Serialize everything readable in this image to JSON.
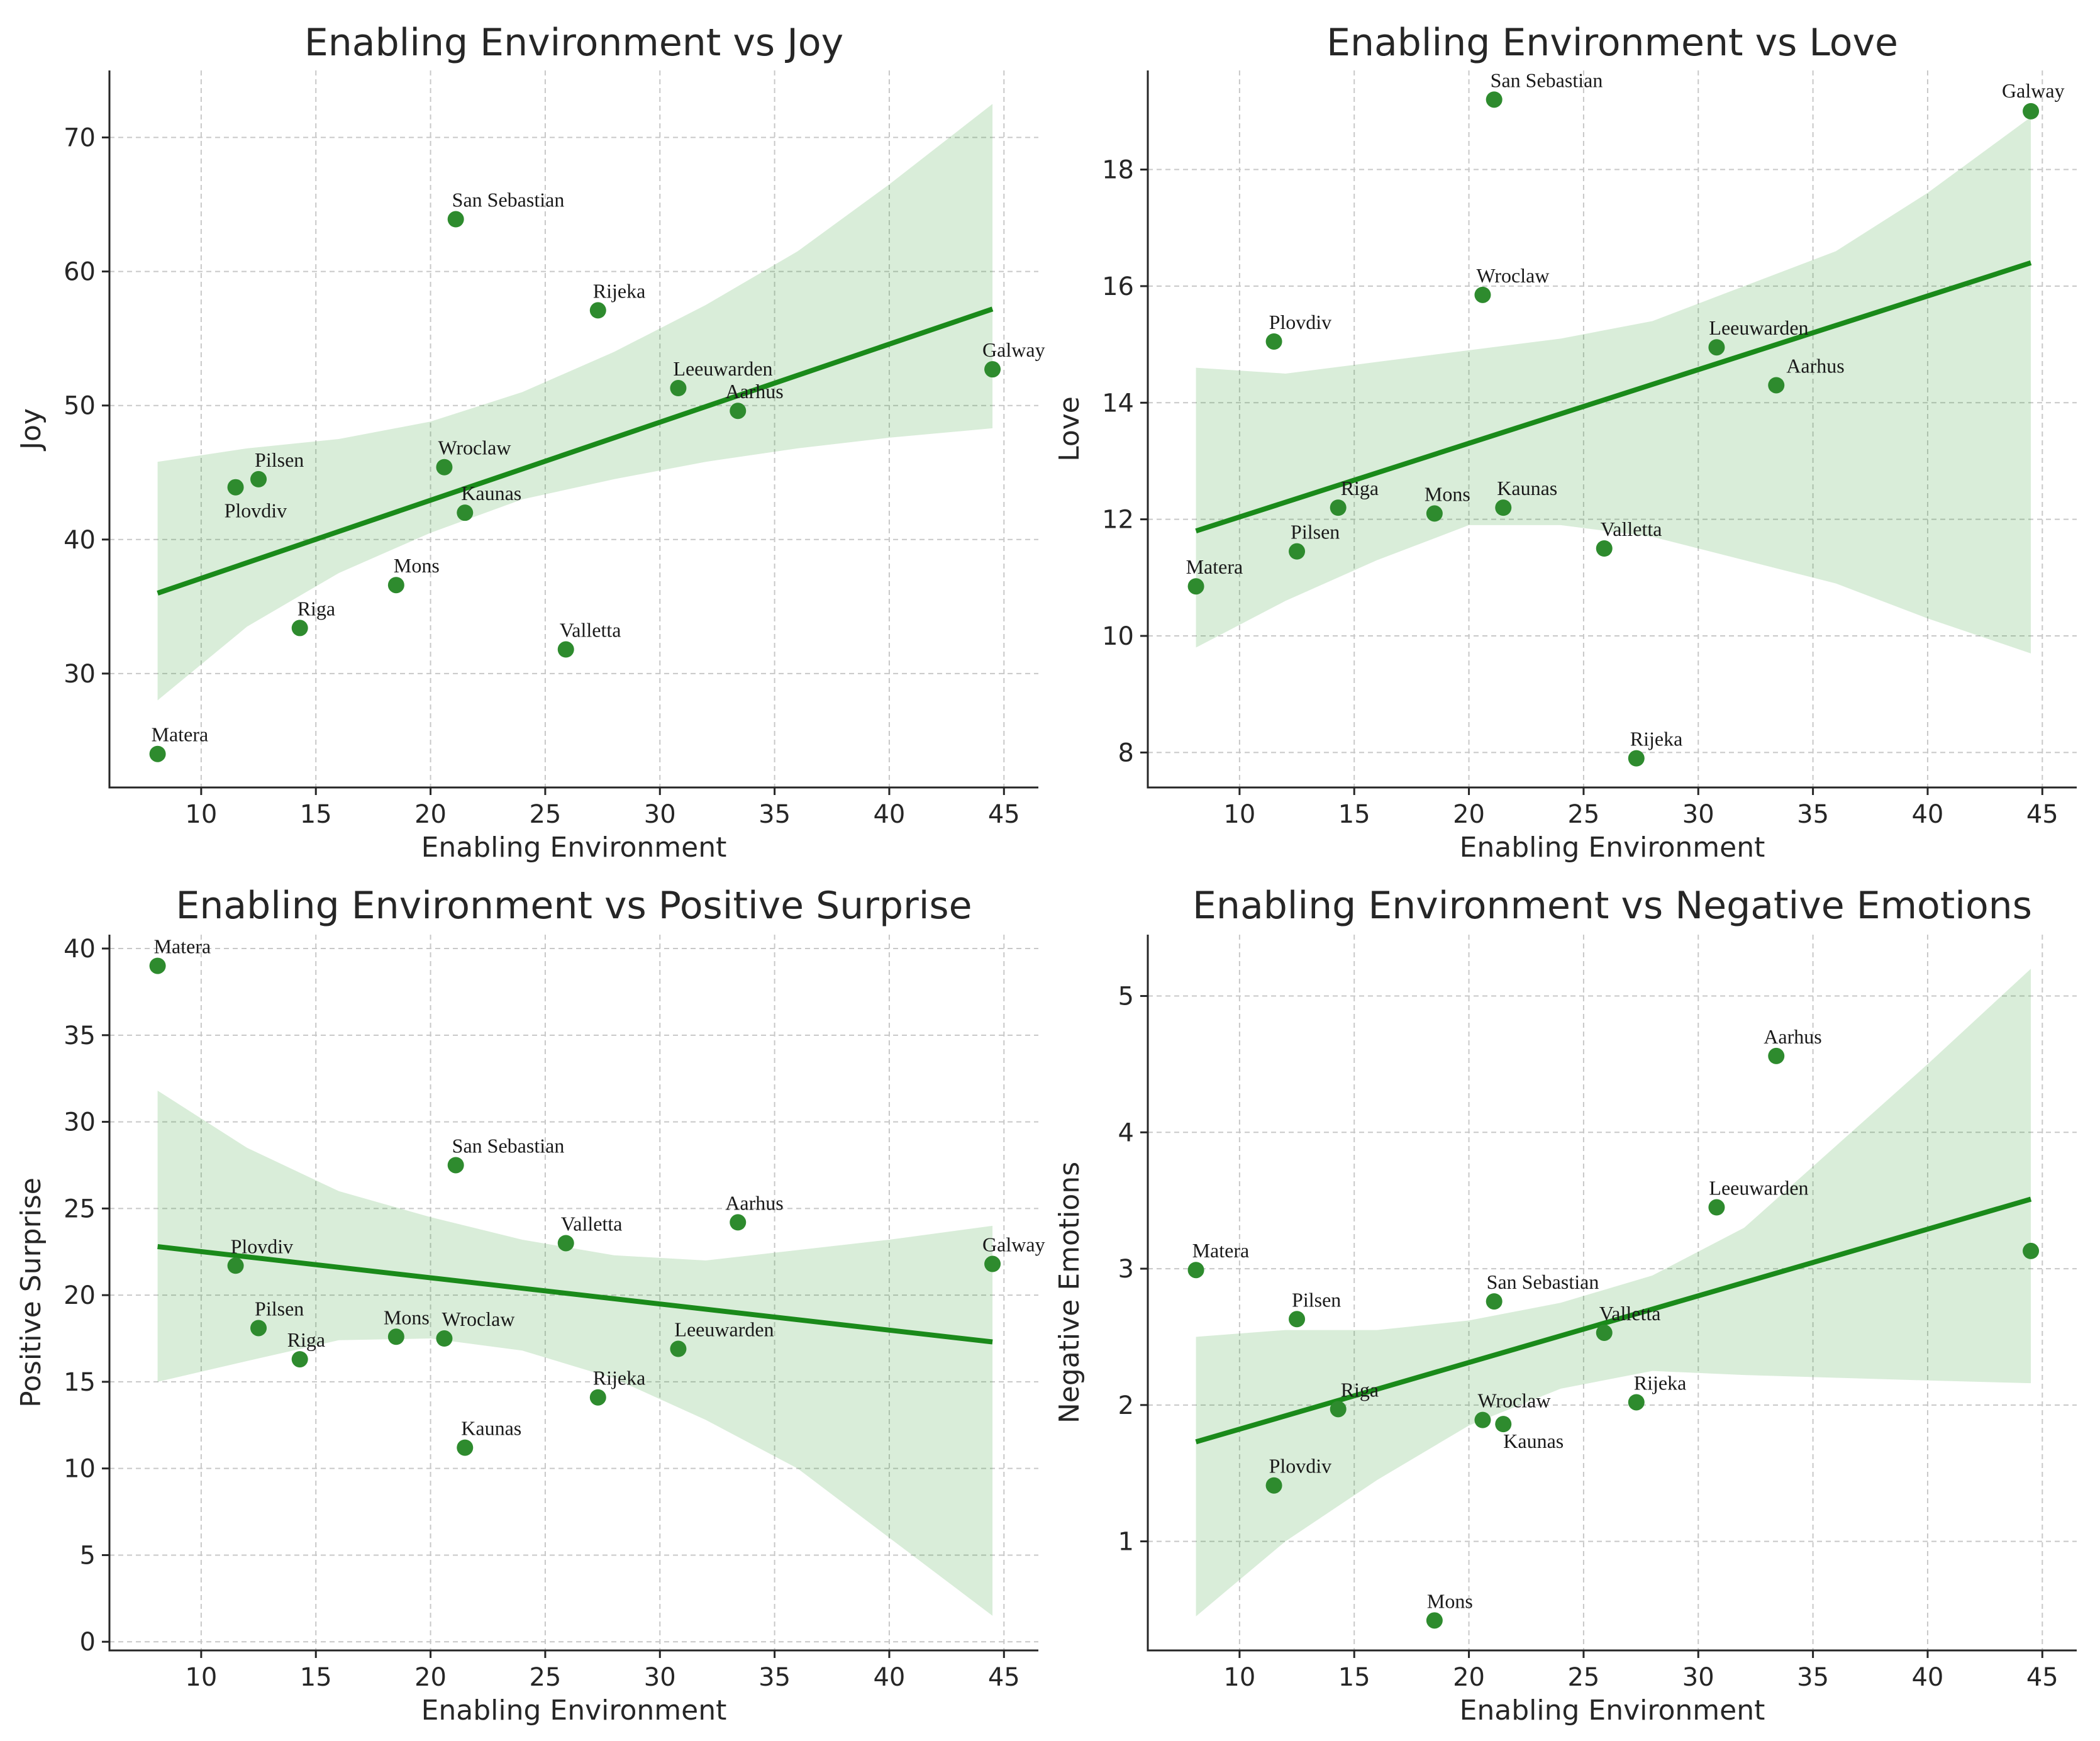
{
  "colors": {
    "point": "#2e8b2e",
    "line": "#1a8a1a",
    "band": "#2e9b2e"
  },
  "chart_data": [
    {
      "type": "scatter",
      "title": "Enabling Environment vs Joy",
      "xlabel": "Enabling Environment",
      "ylabel": "Joy",
      "xlim": [
        6,
        46.5
      ],
      "ylim": [
        21.5,
        75
      ],
      "xticks": [
        10,
        15,
        20,
        25,
        30,
        35,
        40,
        45
      ],
      "yticks": [
        30,
        40,
        50,
        60,
        70
      ],
      "points": [
        {
          "label": "Matera",
          "x": 8.1,
          "y": 24.0
        },
        {
          "label": "Plovdiv",
          "x": 11.5,
          "y": 43.9
        },
        {
          "label": "Pilsen",
          "x": 12.5,
          "y": 44.5
        },
        {
          "label": "Riga",
          "x": 14.3,
          "y": 33.4
        },
        {
          "label": "Mons",
          "x": 18.5,
          "y": 36.6
        },
        {
          "label": "Wroclaw",
          "x": 20.6,
          "y": 45.4
        },
        {
          "label": "San Sebastian",
          "x": 21.1,
          "y": 63.9
        },
        {
          "label": "Kaunas",
          "x": 21.5,
          "y": 42.0
        },
        {
          "label": "Valletta",
          "x": 25.9,
          "y": 31.8
        },
        {
          "label": "Rijeka",
          "x": 27.3,
          "y": 57.1
        },
        {
          "label": "Leeuwarden",
          "x": 30.8,
          "y": 51.3
        },
        {
          "label": "Aarhus",
          "x": 33.4,
          "y": 49.6
        },
        {
          "label": "Galway",
          "x": 44.5,
          "y": 52.7
        }
      ],
      "fit": {
        "x": [
          8.1,
          44.5
        ],
        "y": [
          36.0,
          57.2
        ]
      },
      "band": {
        "x": [
          8.1,
          12,
          16,
          20,
          24,
          28,
          32,
          36,
          40,
          44.5
        ],
        "lower": [
          28.0,
          33.5,
          37.5,
          40.5,
          43.0,
          44.5,
          45.8,
          46.8,
          47.6,
          48.3
        ],
        "upper": [
          45.8,
          46.8,
          47.5,
          48.8,
          51.0,
          54.0,
          57.5,
          61.5,
          66.5,
          72.5
        ]
      }
    },
    {
      "type": "scatter",
      "title": "Enabling Environment vs Love",
      "xlabel": "Enabling Environment",
      "ylabel": "Love",
      "xlim": [
        6,
        46.5
      ],
      "ylim": [
        7.4,
        19.7
      ],
      "xticks": [
        10,
        15,
        20,
        25,
        30,
        35,
        40,
        45
      ],
      "yticks": [
        8,
        10,
        12,
        14,
        16,
        18
      ],
      "points": [
        {
          "label": "Matera",
          "x": 8.1,
          "y": 10.85
        },
        {
          "label": "Plovdiv",
          "x": 11.5,
          "y": 15.05
        },
        {
          "label": "Pilsen",
          "x": 12.5,
          "y": 11.45
        },
        {
          "label": "Riga",
          "x": 14.3,
          "y": 12.2
        },
        {
          "label": "Mons",
          "x": 18.5,
          "y": 12.1
        },
        {
          "label": "Wroclaw",
          "x": 20.6,
          "y": 15.85
        },
        {
          "label": "San Sebastian",
          "x": 21.1,
          "y": 19.2
        },
        {
          "label": "Kaunas",
          "x": 21.5,
          "y": 12.2
        },
        {
          "label": "Valletta",
          "x": 25.9,
          "y": 11.5
        },
        {
          "label": "Rijeka",
          "x": 27.3,
          "y": 7.9
        },
        {
          "label": "Leeuwarden",
          "x": 30.8,
          "y": 14.95
        },
        {
          "label": "Aarhus",
          "x": 33.4,
          "y": 14.3
        },
        {
          "label": "Galway",
          "x": 44.5,
          "y": 19.0
        }
      ],
      "fit": {
        "x": [
          8.1,
          44.5
        ],
        "y": [
          11.8,
          16.4
        ]
      },
      "band": {
        "x": [
          8.1,
          12,
          16,
          20,
          24,
          28,
          32,
          36,
          40,
          44.5
        ],
        "lower": [
          9.8,
          10.6,
          11.3,
          11.9,
          11.9,
          11.7,
          11.3,
          10.9,
          10.3,
          9.7
        ],
        "upper": [
          14.6,
          14.5,
          14.7,
          14.9,
          15.1,
          15.4,
          16.0,
          16.6,
          17.6,
          18.9
        ]
      }
    },
    {
      "type": "scatter",
      "title": "Enabling Environment vs Positive Surprise",
      "xlabel": "Enabling Environment",
      "ylabel": "Positive Surprise",
      "xlim": [
        6,
        46.5
      ],
      "ylim": [
        -0.5,
        40.8
      ],
      "xticks": [
        10,
        15,
        20,
        25,
        30,
        35,
        40,
        45
      ],
      "yticks": [
        0,
        5,
        10,
        15,
        20,
        25,
        30,
        35,
        40
      ],
      "points": [
        {
          "label": "Matera",
          "x": 8.1,
          "y": 39.0
        },
        {
          "label": "Plovdiv",
          "x": 11.5,
          "y": 21.7
        },
        {
          "label": "Pilsen",
          "x": 12.5,
          "y": 18.1
        },
        {
          "label": "Riga",
          "x": 14.3,
          "y": 16.3
        },
        {
          "label": "Mons",
          "x": 18.5,
          "y": 17.6
        },
        {
          "label": "Wroclaw",
          "x": 20.6,
          "y": 17.5
        },
        {
          "label": "San Sebastian",
          "x": 21.1,
          "y": 27.5
        },
        {
          "label": "Kaunas",
          "x": 21.5,
          "y": 11.2
        },
        {
          "label": "Valletta",
          "x": 25.9,
          "y": 23.0
        },
        {
          "label": "Rijeka",
          "x": 27.3,
          "y": 14.1
        },
        {
          "label": "Leeuwarden",
          "x": 30.8,
          "y": 16.9
        },
        {
          "label": "Aarhus",
          "x": 33.4,
          "y": 24.2
        },
        {
          "label": "Galway",
          "x": 44.5,
          "y": 21.8
        }
      ],
      "fit": {
        "x": [
          8.1,
          44.5
        ],
        "y": [
          22.8,
          17.3
        ]
      },
      "band": {
        "x": [
          8.1,
          12,
          16,
          20,
          24,
          28,
          32,
          36,
          40,
          44.5
        ],
        "lower": [
          15.0,
          16.2,
          17.4,
          17.5,
          16.8,
          15.2,
          12.8,
          10.0,
          6.0,
          1.5
        ],
        "upper": [
          31.8,
          28.5,
          26.0,
          24.5,
          23.2,
          22.3,
          22.0,
          22.6,
          23.2,
          24.0
        ]
      }
    },
    {
      "type": "scatter",
      "title": "Enabling Environment vs Negative Emotions",
      "xlabel": "Enabling Environment",
      "ylabel": "Negative Emotions",
      "xlim": [
        6,
        46.5
      ],
      "ylim": [
        0.2,
        5.45
      ],
      "xticks": [
        10,
        15,
        20,
        25,
        30,
        35,
        40,
        45
      ],
      "yticks": [
        1,
        2,
        3,
        4,
        5
      ],
      "points": [
        {
          "label": "Matera",
          "x": 8.1,
          "y": 2.99
        },
        {
          "label": "Plovdiv",
          "x": 11.5,
          "y": 1.41
        },
        {
          "label": "Pilsen",
          "x": 12.5,
          "y": 2.63
        },
        {
          "label": "Riga",
          "x": 14.3,
          "y": 1.97
        },
        {
          "label": "Mons",
          "x": 18.5,
          "y": 0.42
        },
        {
          "label": "Wroclaw",
          "x": 20.6,
          "y": 1.89
        },
        {
          "label": "San Sebastian",
          "x": 21.1,
          "y": 2.76
        },
        {
          "label": "Kaunas",
          "x": 21.5,
          "y": 1.86
        },
        {
          "label": "Valletta",
          "x": 25.9,
          "y": 2.53
        },
        {
          "label": "Rijeka",
          "x": 27.3,
          "y": 2.02
        },
        {
          "label": "Leeuwarden",
          "x": 30.8,
          "y": 3.45
        },
        {
          "label": "Aarhus",
          "x": 33.4,
          "y": 4.56
        },
        {
          "label": "",
          "x": 44.5,
          "y": 3.13
        }
      ],
      "fit": {
        "x": [
          8.1,
          44.5
        ],
        "y": [
          1.73,
          3.51
        ]
      },
      "band": {
        "x": [
          8.1,
          12,
          16,
          20,
          24,
          28,
          32,
          36,
          40,
          44.5
        ],
        "lower": [
          0.45,
          1.0,
          1.45,
          1.85,
          2.12,
          2.25,
          2.22,
          2.2,
          2.18,
          2.16
        ],
        "upper": [
          2.5,
          2.55,
          2.55,
          2.62,
          2.75,
          2.95,
          3.3,
          3.9,
          4.5,
          5.2
        ]
      }
    }
  ]
}
